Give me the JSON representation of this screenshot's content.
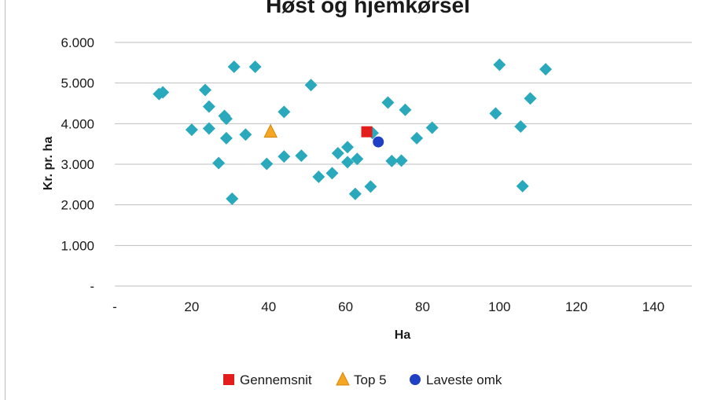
{
  "chart_data": {
    "type": "scatter",
    "title": "Høst og hjemkørsel",
    "xlabel": "Ha",
    "ylabel": "Kr. pr. ha",
    "xlim": [
      0,
      150
    ],
    "ylim": [
      0,
      6000
    ],
    "x_ticks": [
      0,
      20,
      40,
      60,
      80,
      100,
      120,
      140
    ],
    "x_tick_labels": [
      "-",
      "20",
      "40",
      "60",
      "80",
      "100",
      "120",
      "140"
    ],
    "y_ticks": [
      0,
      1000,
      2000,
      3000,
      4000,
      5000,
      6000
    ],
    "y_tick_labels": [
      "-",
      "1.000",
      "2.000",
      "3.000",
      "4.000",
      "5.000",
      "6.000"
    ],
    "grid": "horizontal",
    "legend_position": "bottom",
    "series": [
      {
        "name": "",
        "marker": "diamond",
        "color": "#2aa9bd",
        "points": [
          [
            11.5,
            4730
          ],
          [
            12.5,
            4770
          ],
          [
            20,
            3850
          ],
          [
            23.5,
            4830
          ],
          [
            24.5,
            4420
          ],
          [
            24.5,
            3880
          ],
          [
            27,
            3030
          ],
          [
            28.5,
            4190
          ],
          [
            29,
            4120
          ],
          [
            29,
            3640
          ],
          [
            30.5,
            2150
          ],
          [
            31,
            5400
          ],
          [
            34,
            3730
          ],
          [
            36.5,
            5400
          ],
          [
            39.5,
            3010
          ],
          [
            44,
            4290
          ],
          [
            44,
            3190
          ],
          [
            48.5,
            3210
          ],
          [
            51,
            4950
          ],
          [
            53,
            2690
          ],
          [
            56.5,
            2780
          ],
          [
            58,
            3270
          ],
          [
            60.5,
            3420
          ],
          [
            60.5,
            3050
          ],
          [
            62.5,
            2270
          ],
          [
            63,
            3130
          ],
          [
            66.5,
            2450
          ],
          [
            67,
            3770
          ],
          [
            71,
            4520
          ],
          [
            72,
            3080
          ],
          [
            74.5,
            3090
          ],
          [
            75.5,
            4340
          ],
          [
            78.5,
            3640
          ],
          [
            82.5,
            3900
          ],
          [
            99,
            4250
          ],
          [
            100,
            5450
          ],
          [
            105.5,
            3930
          ],
          [
            106,
            2460
          ],
          [
            108,
            4620
          ],
          [
            112,
            5340
          ]
        ]
      },
      {
        "name": "Gennemsnit",
        "marker": "square",
        "color": "#e31c1c",
        "points": [
          [
            65.5,
            3800
          ]
        ]
      },
      {
        "name": "Top 5",
        "marker": "triangle",
        "color": "#f5a623",
        "points": [
          [
            40.5,
            3800
          ]
        ]
      },
      {
        "name": "Laveste omk",
        "marker": "circle",
        "color": "#1f3fc4",
        "points": [
          [
            68.5,
            3550
          ]
        ]
      }
    ]
  }
}
